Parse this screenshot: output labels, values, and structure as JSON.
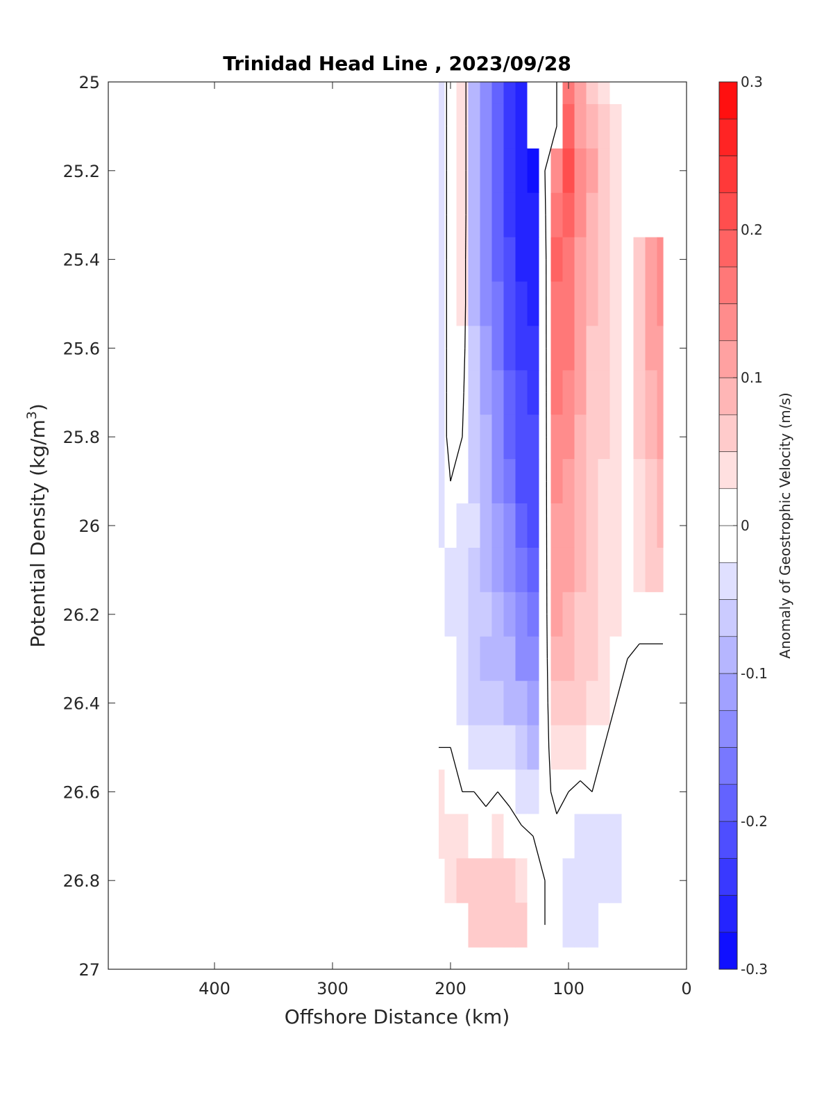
{
  "chart_data": {
    "type": "heatmap",
    "title": "Trinidad Head Line , 2023/09/28",
    "xlabel": "Offshore Distance (km)",
    "ylabel": "Potential Density (kg/m",
    "ylabel_sup": "3",
    "ylabel_end": ")",
    "colorbar_label": "Anomaly of Geostrophic Velocity (m/s)",
    "xlim": [
      490,
      0
    ],
    "x_reversed": true,
    "ylim": [
      25,
      27
    ],
    "y_reversed": true,
    "xticks": [
      400,
      300,
      200,
      100,
      0
    ],
    "yticks": [
      25,
      25.2,
      25.4,
      25.6,
      25.8,
      26,
      26.2,
      26.4,
      26.6,
      26.8,
      27
    ],
    "ytick_labels": [
      "25",
      "25.2",
      "25.4",
      "25.6",
      "25.8",
      "26",
      "26.2",
      "26.4",
      "26.6",
      "26.8",
      "27"
    ],
    "colorbar_ticks": [
      "0.3",
      "0.2",
      "0.1",
      "0",
      "-0.1",
      "-0.2",
      "-0.3"
    ],
    "colorbar_tick_values": [
      0.3,
      0.2,
      0.1,
      0,
      -0.1,
      -0.2,
      -0.3
    ],
    "clim": [
      -0.3,
      0.3
    ],
    "levels": 24,
    "colormap": "blue-white-red",
    "colors": {
      "negative": "#0000ff",
      "zero": "#ffffff",
      "positive": "#ff0000",
      "contour": "#000000"
    },
    "x": [
      210,
      200,
      190,
      180,
      170,
      160,
      150,
      140,
      130,
      120,
      110,
      100,
      90,
      80,
      70,
      60,
      50,
      40,
      30,
      20
    ],
    "y": [
      25,
      25.1,
      25.2,
      25.3,
      25.4,
      25.5,
      25.6,
      25.7,
      25.8,
      25.9,
      26,
      26.1,
      26.2,
      26.3,
      26.4,
      26.5,
      26.6,
      26.7,
      26.8,
      26.9
    ],
    "values": [
      [
        -0.04,
        0.02,
        0.04,
        -0.09,
        -0.14,
        -0.19,
        -0.24,
        -0.27,
        0.0,
        0.0,
        0.0,
        0.16,
        0.1,
        0.06,
        0.04,
        0.02,
        null,
        null,
        null,
        null
      ],
      [
        -0.04,
        0.02,
        0.04,
        -0.09,
        -0.14,
        -0.19,
        -0.24,
        -0.27,
        0.0,
        0.0,
        0.0,
        0.18,
        0.12,
        0.08,
        0.05,
        0.03,
        0.02,
        null,
        null,
        null
      ],
      [
        -0.04,
        0.02,
        0.04,
        -0.09,
        -0.14,
        -0.19,
        -0.24,
        -0.27,
        -0.28,
        0.0,
        0.14,
        0.2,
        0.14,
        0.1,
        0.06,
        0.04,
        0.02,
        null,
        null,
        null
      ],
      [
        -0.04,
        0.02,
        0.04,
        -0.09,
        -0.14,
        -0.19,
        -0.24,
        -0.27,
        -0.27,
        -0.01,
        0.16,
        0.18,
        0.13,
        0.09,
        0.06,
        0.04,
        0.02,
        null,
        null,
        null
      ],
      [
        -0.04,
        0.02,
        0.03,
        -0.08,
        -0.13,
        -0.18,
        -0.22,
        -0.25,
        -0.26,
        -0.02,
        0.18,
        0.17,
        0.12,
        0.08,
        0.06,
        0.04,
        0.02,
        0.06,
        0.12,
        0.14
      ],
      [
        -0.04,
        0.02,
        0.03,
        -0.08,
        -0.13,
        -0.17,
        -0.21,
        -0.24,
        -0.25,
        -0.02,
        0.17,
        0.16,
        0.11,
        0.08,
        0.05,
        0.04,
        0.02,
        0.06,
        0.11,
        0.13
      ],
      [
        -0.04,
        0.02,
        0.02,
        -0.07,
        -0.12,
        -0.16,
        -0.2,
        -0.23,
        -0.24,
        -0.02,
        0.16,
        0.15,
        0.1,
        0.07,
        0.05,
        0.03,
        0.02,
        0.06,
        0.1,
        0.12
      ],
      [
        -0.04,
        0.02,
        0.01,
        -0.07,
        -0.11,
        -0.15,
        -0.19,
        -0.22,
        -0.23,
        -0.02,
        0.15,
        0.14,
        0.1,
        0.07,
        0.05,
        0.03,
        0.02,
        0.05,
        0.09,
        0.11
      ],
      [
        -0.04,
        0.02,
        0.0,
        -0.06,
        -0.1,
        -0.14,
        -0.18,
        -0.21,
        -0.22,
        -0.02,
        0.14,
        0.13,
        0.09,
        0.06,
        0.05,
        0.03,
        0.02,
        0.05,
        0.08,
        0.1
      ],
      [
        -0.04,
        0.0,
        -0.02,
        -0.06,
        -0.09,
        -0.13,
        -0.17,
        -0.2,
        -0.21,
        -0.02,
        0.13,
        0.12,
        0.09,
        0.06,
        0.04,
        0.03,
        0.02,
        0.04,
        0.07,
        0.09
      ],
      [
        -0.03,
        -0.02,
        -0.03,
        -0.05,
        -0.08,
        -0.12,
        -0.15,
        -0.19,
        -0.2,
        -0.02,
        0.12,
        0.11,
        0.08,
        0.06,
        0.04,
        0.03,
        0.02,
        0.04,
        0.06,
        0.08
      ],
      [
        -0.02,
        -0.03,
        -0.04,
        -0.06,
        -0.08,
        -0.11,
        -0.14,
        -0.17,
        -0.19,
        -0.02,
        0.11,
        0.1,
        0.08,
        0.05,
        0.04,
        0.03,
        0.02,
        0.03,
        0.05,
        0.07
      ],
      [
        -0.01,
        -0.03,
        -0.05,
        -0.06,
        -0.07,
        -0.09,
        -0.12,
        -0.15,
        -0.17,
        -0.02,
        0.1,
        0.09,
        0.07,
        0.05,
        0.04,
        0.03,
        0.02,
        0.02,
        0.02,
        0.02
      ],
      [
        -0.01,
        -0.02,
        -0.05,
        -0.07,
        -0.08,
        -0.08,
        -0.1,
        -0.13,
        -0.15,
        -0.02,
        0.08,
        0.08,
        0.06,
        0.05,
        0.04,
        0.02,
        0.0,
        -0.01,
        -0.01,
        -0.01
      ],
      [
        0.0,
        -0.01,
        -0.04,
        -0.06,
        -0.07,
        -0.06,
        -0.08,
        -0.1,
        -0.12,
        -0.02,
        0.06,
        0.06,
        0.05,
        0.04,
        0.03,
        0.0,
        -0.01,
        -0.01,
        -0.01,
        -0.01
      ],
      [
        0.0,
        0.0,
        -0.01,
        -0.03,
        -0.04,
        -0.03,
        -0.05,
        -0.07,
        -0.08,
        -0.02,
        0.04,
        0.04,
        0.03,
        0.02,
        0.0,
        -0.01,
        -0.01,
        -0.01,
        -0.01,
        -0.01
      ],
      [
        0.03,
        0.02,
        0.0,
        0.0,
        -0.01,
        0.0,
        -0.01,
        -0.03,
        -0.04,
        -0.01,
        0.01,
        0.0,
        -0.01,
        0.0,
        -0.01,
        -0.01,
        -0.01,
        -0.01,
        -0.01,
        -0.01
      ],
      [
        0.03,
        0.04,
        0.04,
        0.02,
        0.02,
        0.03,
        0.02,
        0.01,
        0.0,
        0.0,
        -0.01,
        -0.02,
        -0.03,
        -0.03,
        -0.03,
        -0.03,
        -0.02,
        -0.01,
        -0.01,
        -0.01
      ],
      [
        null,
        0.04,
        0.05,
        0.06,
        0.06,
        0.06,
        0.06,
        0.04,
        0.02,
        0.0,
        -0.02,
        -0.03,
        -0.04,
        -0.04,
        -0.04,
        -0.03,
        -0.02,
        null,
        null,
        null
      ],
      [
        null,
        null,
        null,
        0.06,
        0.07,
        0.07,
        0.06,
        0.05,
        0.02,
        0.0,
        -0.02,
        -0.03,
        -0.04,
        -0.03,
        null,
        null,
        null,
        null,
        null,
        null
      ]
    ]
  }
}
